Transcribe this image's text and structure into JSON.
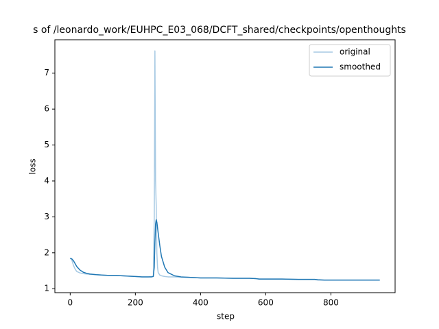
{
  "chart_data": {
    "type": "line",
    "title": "s of /leonardo_work/EUHPC_E03_068/DCFT_shared/checkpoints/openthoughts",
    "xlabel": "step",
    "ylabel": "loss",
    "x": [
      0,
      5,
      10,
      15,
      20,
      30,
      40,
      50,
      60,
      80,
      100,
      120,
      140,
      160,
      180,
      200,
      220,
      240,
      250,
      255,
      258,
      260,
      262,
      264,
      266,
      268,
      270,
      275,
      280,
      290,
      300,
      320,
      340,
      360,
      380,
      400,
      450,
      500,
      550,
      570,
      580,
      600,
      650,
      700,
      750,
      760,
      780,
      800,
      850,
      900,
      950
    ],
    "series": [
      {
        "name": "original",
        "color": "#a6c9e3",
        "values": [
          1.85,
          1.8,
          1.65,
          1.55,
          1.48,
          1.44,
          1.42,
          1.41,
          1.4,
          1.39,
          1.38,
          1.37,
          1.37,
          1.36,
          1.35,
          1.34,
          1.33,
          1.33,
          1.34,
          1.35,
          3.0,
          7.62,
          4.0,
          3.3,
          2.0,
          1.6,
          1.45,
          1.38,
          1.36,
          1.34,
          1.33,
          1.33,
          1.32,
          1.32,
          1.31,
          1.3,
          1.3,
          1.29,
          1.29,
          1.28,
          1.27,
          1.27,
          1.27,
          1.26,
          1.26,
          1.24,
          1.24,
          1.24,
          1.24,
          1.24,
          1.24
        ]
      },
      {
        "name": "smoothed",
        "color": "#1f77b4",
        "values": [
          1.85,
          1.83,
          1.78,
          1.7,
          1.62,
          1.52,
          1.46,
          1.43,
          1.41,
          1.39,
          1.38,
          1.37,
          1.37,
          1.36,
          1.35,
          1.34,
          1.33,
          1.33,
          1.33,
          1.34,
          1.6,
          2.3,
          2.8,
          2.92,
          2.85,
          2.7,
          2.55,
          2.2,
          1.9,
          1.6,
          1.45,
          1.36,
          1.33,
          1.32,
          1.31,
          1.3,
          1.3,
          1.29,
          1.29,
          1.28,
          1.27,
          1.27,
          1.27,
          1.26,
          1.26,
          1.25,
          1.24,
          1.24,
          1.24,
          1.24,
          1.24
        ]
      }
    ],
    "xlim": [
      -47,
      997
    ],
    "ylim": [
      0.89,
      7.93
    ],
    "xticks": [
      0,
      200,
      400,
      600,
      800
    ],
    "yticks": [
      1,
      2,
      3,
      4,
      5,
      6,
      7
    ],
    "legend": "upper right"
  }
}
